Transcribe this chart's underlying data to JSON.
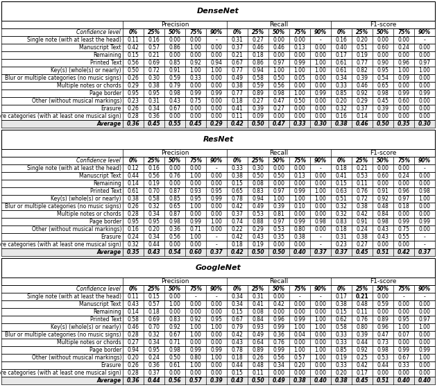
{
  "networks": [
    "DenseNet",
    "ResNet",
    "GoogleNet"
  ],
  "row_labels": [
    "Single note (with at least the head)",
    "Manuscript Text",
    "Remaining",
    "Printed Text",
    "Key(s) (whole(s) or nearly)",
    "Blur or multiple categories (no music signs)",
    "Multiple notes or chords",
    "Page border",
    "Other (without musical markings)",
    "Erasure",
    "More categories (with at least one musical sign)",
    "Average"
  ],
  "col_header_1": "Confidence level",
  "col_groups": [
    "Precision",
    "Recall",
    "F1-score"
  ],
  "col_subheaders": [
    "0%",
    "25%",
    "50%",
    "75%",
    "90%"
  ],
  "densenet": {
    "precision": [
      [
        0.11,
        0.16,
        0.0,
        0.0,
        null
      ],
      [
        0.42,
        0.57,
        0.86,
        1.0,
        0.0
      ],
      [
        0.15,
        0.21,
        0.0,
        0.0,
        0.0
      ],
      [
        0.56,
        0.69,
        0.85,
        0.92,
        0.94
      ],
      [
        0.5,
        0.72,
        0.91,
        1.0,
        1.0
      ],
      [
        0.26,
        0.3,
        0.59,
        0.33,
        0.0
      ],
      [
        0.29,
        0.38,
        0.79,
        0.0,
        0.0
      ],
      [
        0.95,
        0.95,
        0.98,
        0.99,
        0.99
      ],
      [
        0.23,
        0.31,
        0.43,
        0.75,
        0.0
      ],
      [
        0.26,
        0.34,
        0.67,
        0.0,
        0.0
      ],
      [
        0.28,
        0.36,
        0.0,
        0.0,
        0.0
      ],
      [
        0.36,
        0.45,
        0.55,
        0.45,
        0.29
      ]
    ],
    "recall": [
      [
        0.31,
        0.27,
        0.0,
        0.0,
        null
      ],
      [
        0.37,
        0.46,
        0.46,
        0.13,
        0.0
      ],
      [
        0.21,
        0.18,
        0.0,
        0.0,
        0.0
      ],
      [
        0.67,
        0.86,
        0.97,
        0.99,
        1.0
      ],
      [
        0.77,
        0.94,
        1.0,
        1.0,
        1.0
      ],
      [
        0.49,
        0.58,
        0.5,
        0.05,
        0.0
      ],
      [
        0.38,
        0.59,
        0.56,
        0.0,
        0.0
      ],
      [
        0.77,
        0.89,
        0.98,
        1.0,
        0.99
      ],
      [
        0.18,
        0.27,
        0.47,
        0.5,
        0.0
      ],
      [
        0.41,
        0.39,
        0.27,
        0.0,
        0.0
      ],
      [
        0.11,
        0.09,
        0.0,
        0.0,
        0.0
      ],
      [
        0.42,
        0.5,
        0.47,
        0.33,
        0.3
      ]
    ],
    "f1": [
      [
        0.16,
        0.2,
        0.0,
        0.0,
        null
      ],
      [
        0.4,
        0.51,
        0.6,
        0.24,
        0.0
      ],
      [
        0.17,
        0.19,
        0.0,
        0.0,
        0.0
      ],
      [
        0.61,
        0.77,
        0.9,
        0.96,
        0.97
      ],
      [
        0.61,
        0.82,
        0.95,
        1.0,
        1.0
      ],
      [
        0.34,
        0.39,
        0.54,
        0.09,
        0.0
      ],
      [
        0.33,
        0.46,
        0.65,
        0.0,
        0.0
      ],
      [
        0.85,
        0.92,
        0.98,
        0.99,
        0.99
      ],
      [
        0.2,
        0.29,
        0.45,
        0.6,
        0.0
      ],
      [
        0.32,
        0.37,
        0.39,
        0.0,
        0.0
      ],
      [
        0.16,
        0.14,
        0.0,
        0.0,
        0.0
      ],
      [
        0.38,
        0.46,
        0.5,
        0.35,
        0.3
      ]
    ],
    "bold": {
      "precision": [],
      "recall": [],
      "f1": []
    }
  },
  "resnet": {
    "precision": [
      [
        0.12,
        0.16,
        0.0,
        0.0,
        null
      ],
      [
        0.44,
        0.56,
        0.76,
        1.0,
        0.0
      ],
      [
        0.14,
        0.19,
        0.0,
        0.0,
        0.0
      ],
      [
        0.61,
        0.7,
        0.87,
        0.93,
        0.95
      ],
      [
        0.38,
        0.58,
        0.85,
        0.95,
        0.99
      ],
      [
        0.26,
        0.32,
        0.65,
        1.0,
        0.0
      ],
      [
        0.28,
        0.34,
        0.87,
        0.0,
        0.0
      ],
      [
        0.95,
        0.95,
        0.98,
        0.99,
        1.0
      ],
      [
        0.16,
        0.2,
        0.36,
        0.71,
        0.0
      ],
      [
        0.24,
        0.34,
        0.56,
        1.0,
        null
      ],
      [
        0.32,
        0.44,
        0.0,
        0.0,
        null
      ],
      [
        0.35,
        0.43,
        0.54,
        0.6,
        0.37
      ]
    ],
    "recall": [
      [
        0.33,
        0.3,
        0.0,
        0.0,
        null
      ],
      [
        0.38,
        0.5,
        0.5,
        0.13,
        0.0
      ],
      [
        0.15,
        0.08,
        0.0,
        0.0,
        0.0
      ],
      [
        0.65,
        0.83,
        0.97,
        0.99,
        1.0
      ],
      [
        0.78,
        0.94,
        1.0,
        1.0,
        1.0
      ],
      [
        0.42,
        0.49,
        0.39,
        0.1,
        0.0
      ],
      [
        0.37,
        0.53,
        0.81,
        0.0,
        0.0
      ],
      [
        0.74,
        0.88,
        0.97,
        0.99,
        0.98
      ],
      [
        0.22,
        0.29,
        0.53,
        0.8,
        0.0
      ],
      [
        0.42,
        0.43,
        0.35,
        0.38,
        null
      ],
      [
        0.18,
        0.19,
        0.0,
        0.0,
        null
      ],
      [
        0.42,
        0.5,
        0.5,
        0.4,
        0.37
      ]
    ],
    "f1": [
      [
        0.18,
        0.21,
        0.0,
        0.0,
        null
      ],
      [
        0.41,
        0.53,
        0.6,
        0.24,
        0.0
      ],
      [
        0.15,
        0.11,
        0.0,
        0.0,
        0.0
      ],
      [
        0.63,
        0.76,
        0.91,
        0.96,
        0.98
      ],
      [
        0.51,
        0.72,
        0.92,
        0.97,
        1.0
      ],
      [
        0.32,
        0.38,
        0.48,
        0.18,
        0.0
      ],
      [
        0.32,
        0.42,
        0.84,
        0.0,
        0.0
      ],
      [
        0.83,
        0.91,
        0.98,
        0.99,
        0.99
      ],
      [
        0.18,
        0.24,
        0.43,
        0.75,
        0.0
      ],
      [
        0.31,
        0.38,
        0.43,
        0.55,
        null
      ],
      [
        0.23,
        0.27,
        0.0,
        0.0,
        null
      ],
      [
        0.37,
        0.45,
        0.51,
        0.42,
        0.37
      ]
    ],
    "bold_cols": [
      3,
      1,
      2
    ]
  },
  "googlenet": {
    "precision": [
      [
        0.11,
        0.15,
        0.0,
        null,
        null
      ],
      [
        0.43,
        0.57,
        1.0,
        0.0,
        0.0
      ],
      [
        0.14,
        0.18,
        0.0,
        0.0,
        0.0
      ],
      [
        0.58,
        0.69,
        0.83,
        0.92,
        0.95
      ],
      [
        0.46,
        0.7,
        0.92,
        1.0,
        1.0
      ],
      [
        0.28,
        0.32,
        0.67,
        1.0,
        0.0
      ],
      [
        0.27,
        0.34,
        0.71,
        0.0,
        0.0
      ],
      [
        0.94,
        0.95,
        0.98,
        0.99,
        0.99
      ],
      [
        0.2,
        0.24,
        0.5,
        0.8,
        1.0
      ],
      [
        0.26,
        0.36,
        0.61,
        1.0,
        0.0
      ],
      [
        0.28,
        0.37,
        0.0,
        0.0,
        0.0
      ],
      [
        0.36,
        0.44,
        0.56,
        0.57,
        0.39
      ]
    ],
    "recall": [
      [
        0.34,
        0.31,
        0.0,
        null,
        null
      ],
      [
        0.34,
        0.41,
        0.42,
        0.0,
        0.0
      ],
      [
        0.15,
        0.08,
        0.0,
        0.0,
        0.0
      ],
      [
        0.67,
        0.84,
        0.96,
        0.99,
        1.0
      ],
      [
        0.79,
        0.93,
        0.99,
        1.0,
        1.0
      ],
      [
        0.42,
        0.49,
        0.36,
        0.04,
        0.0
      ],
      [
        0.43,
        0.64,
        0.76,
        0.0,
        0.0
      ],
      [
        0.78,
        0.89,
        0.99,
        1.0,
        1.0
      ],
      [
        0.18,
        0.26,
        0.56,
        0.57,
        1.0
      ],
      [
        0.44,
        0.48,
        0.34,
        0.2,
        0.0
      ],
      [
        0.15,
        0.11,
        0.0,
        0.0,
        0.0
      ],
      [
        0.43,
        0.5,
        0.49,
        0.38,
        0.4
      ]
    ],
    "f1": [
      [
        0.17,
        0.21,
        0.0,
        null,
        null
      ],
      [
        0.38,
        0.48,
        0.59,
        0.0,
        0.0
      ],
      [
        0.15,
        0.11,
        0.0,
        0.0,
        0.0
      ],
      [
        0.62,
        0.76,
        0.89,
        0.95,
        0.97
      ],
      [
        0.58,
        0.8,
        0.96,
        1.0,
        1.0
      ],
      [
        0.33,
        0.39,
        0.47,
        0.07,
        0.0
      ],
      [
        0.33,
        0.44,
        0.73,
        0.0,
        0.0
      ],
      [
        0.85,
        0.92,
        0.98,
        0.99,
        0.99
      ],
      [
        0.19,
        0.25,
        0.53,
        0.67,
        1.0
      ],
      [
        0.33,
        0.42,
        0.44,
        0.33,
        0.0
      ],
      [
        0.2,
        0.17,
        0.0,
        0.0,
        0.0
      ],
      [
        0.38,
        0.45,
        0.51,
        0.4,
        0.4
      ]
    ]
  }
}
